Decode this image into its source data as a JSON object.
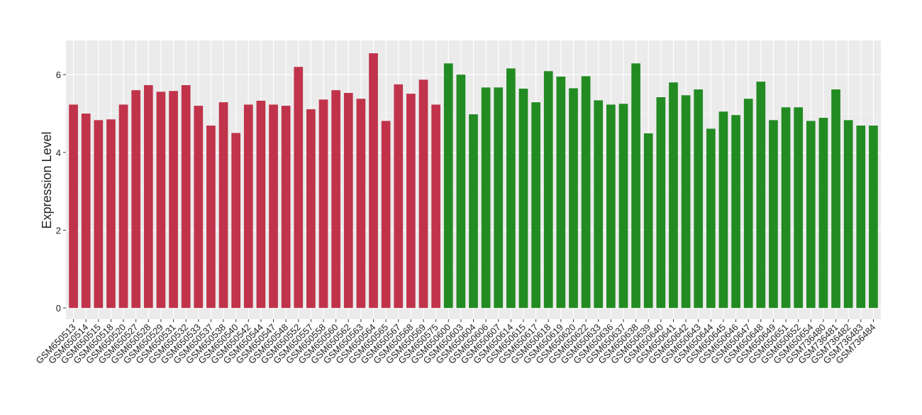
{
  "chart_data": {
    "type": "bar",
    "y_label": "Expression Level",
    "categories": [
      "GSM650513",
      "GSM650514",
      "GSM650515",
      "GSM650518",
      "GSM650520",
      "GSM650527",
      "GSM650528",
      "GSM650529",
      "GSM650531",
      "GSM650532",
      "GSM650533",
      "GSM650537",
      "GSM650538",
      "GSM650540",
      "GSM650542",
      "GSM650544",
      "GSM650547",
      "GSM650548",
      "GSM650552",
      "GSM650557",
      "GSM650558",
      "GSM650560",
      "GSM650562",
      "GSM650563",
      "GSM650564",
      "GSM650565",
      "GSM650567",
      "GSM650568",
      "GSM650569",
      "GSM650575",
      "GSM650600",
      "GSM650603",
      "GSM650604",
      "GSM650606",
      "GSM650607",
      "GSM650614",
      "GSM650615",
      "GSM650617",
      "GSM650618",
      "GSM650619",
      "GSM650620",
      "GSM650622",
      "GSM650633",
      "GSM650636",
      "GSM650637",
      "GSM650638",
      "GSM650639",
      "GSM650640",
      "GSM650641",
      "GSM650642",
      "GSM650643",
      "GSM650644",
      "GSM650645",
      "GSM650646",
      "GSM650647",
      "GSM650648",
      "GSM650649",
      "GSM650651",
      "GSM650652",
      "GSM650654",
      "GSM736480",
      "GSM736481",
      "GSM736482",
      "GSM736483",
      "GSM736484"
    ],
    "values": [
      5.23,
      5.0,
      4.83,
      4.85,
      5.23,
      5.6,
      5.73,
      5.56,
      5.58,
      5.73,
      5.2,
      4.69,
      5.29,
      4.5,
      5.23,
      5.33,
      5.23,
      5.2,
      6.2,
      5.11,
      5.36,
      5.6,
      5.53,
      5.38,
      6.55,
      4.81,
      5.75,
      5.51,
      5.87,
      5.23,
      6.29,
      6.0,
      4.98,
      5.67,
      5.67,
      6.16,
      5.64,
      5.29,
      6.09,
      5.95,
      5.65,
      5.96,
      5.34,
      5.23,
      5.25,
      6.29,
      4.49,
      5.42,
      5.8,
      5.47,
      5.62,
      4.61,
      5.05,
      4.96,
      5.38,
      5.82,
      4.83,
      5.16,
      5.16,
      4.81,
      4.89,
      5.62,
      4.83,
      4.69,
      4.69
    ],
    "colors": [
      "#c0334a",
      "#c0334a",
      "#c0334a",
      "#c0334a",
      "#c0334a",
      "#c0334a",
      "#c0334a",
      "#c0334a",
      "#c0334a",
      "#c0334a",
      "#c0334a",
      "#c0334a",
      "#c0334a",
      "#c0334a",
      "#c0334a",
      "#c0334a",
      "#c0334a",
      "#c0334a",
      "#c0334a",
      "#c0334a",
      "#c0334a",
      "#c0334a",
      "#c0334a",
      "#c0334a",
      "#c0334a",
      "#c0334a",
      "#c0334a",
      "#c0334a",
      "#c0334a",
      "#c0334a",
      "#228b22",
      "#228b22",
      "#228b22",
      "#228b22",
      "#228b22",
      "#228b22",
      "#228b22",
      "#228b22",
      "#228b22",
      "#228b22",
      "#228b22",
      "#228b22",
      "#228b22",
      "#228b22",
      "#228b22",
      "#228b22",
      "#228b22",
      "#228b22",
      "#228b22",
      "#228b22",
      "#228b22",
      "#228b22",
      "#228b22",
      "#228b22",
      "#228b22",
      "#228b22",
      "#228b22",
      "#228b22",
      "#228b22",
      "#228b22",
      "#228b22",
      "#228b22",
      "#228b22",
      "#228b22",
      "#228b22"
    ],
    "ylim": [
      -0.29,
      6.88
    ],
    "yticks": [
      0,
      2,
      4,
      6
    ],
    "yminor": [
      1,
      3,
      5
    ],
    "grid": true
  }
}
